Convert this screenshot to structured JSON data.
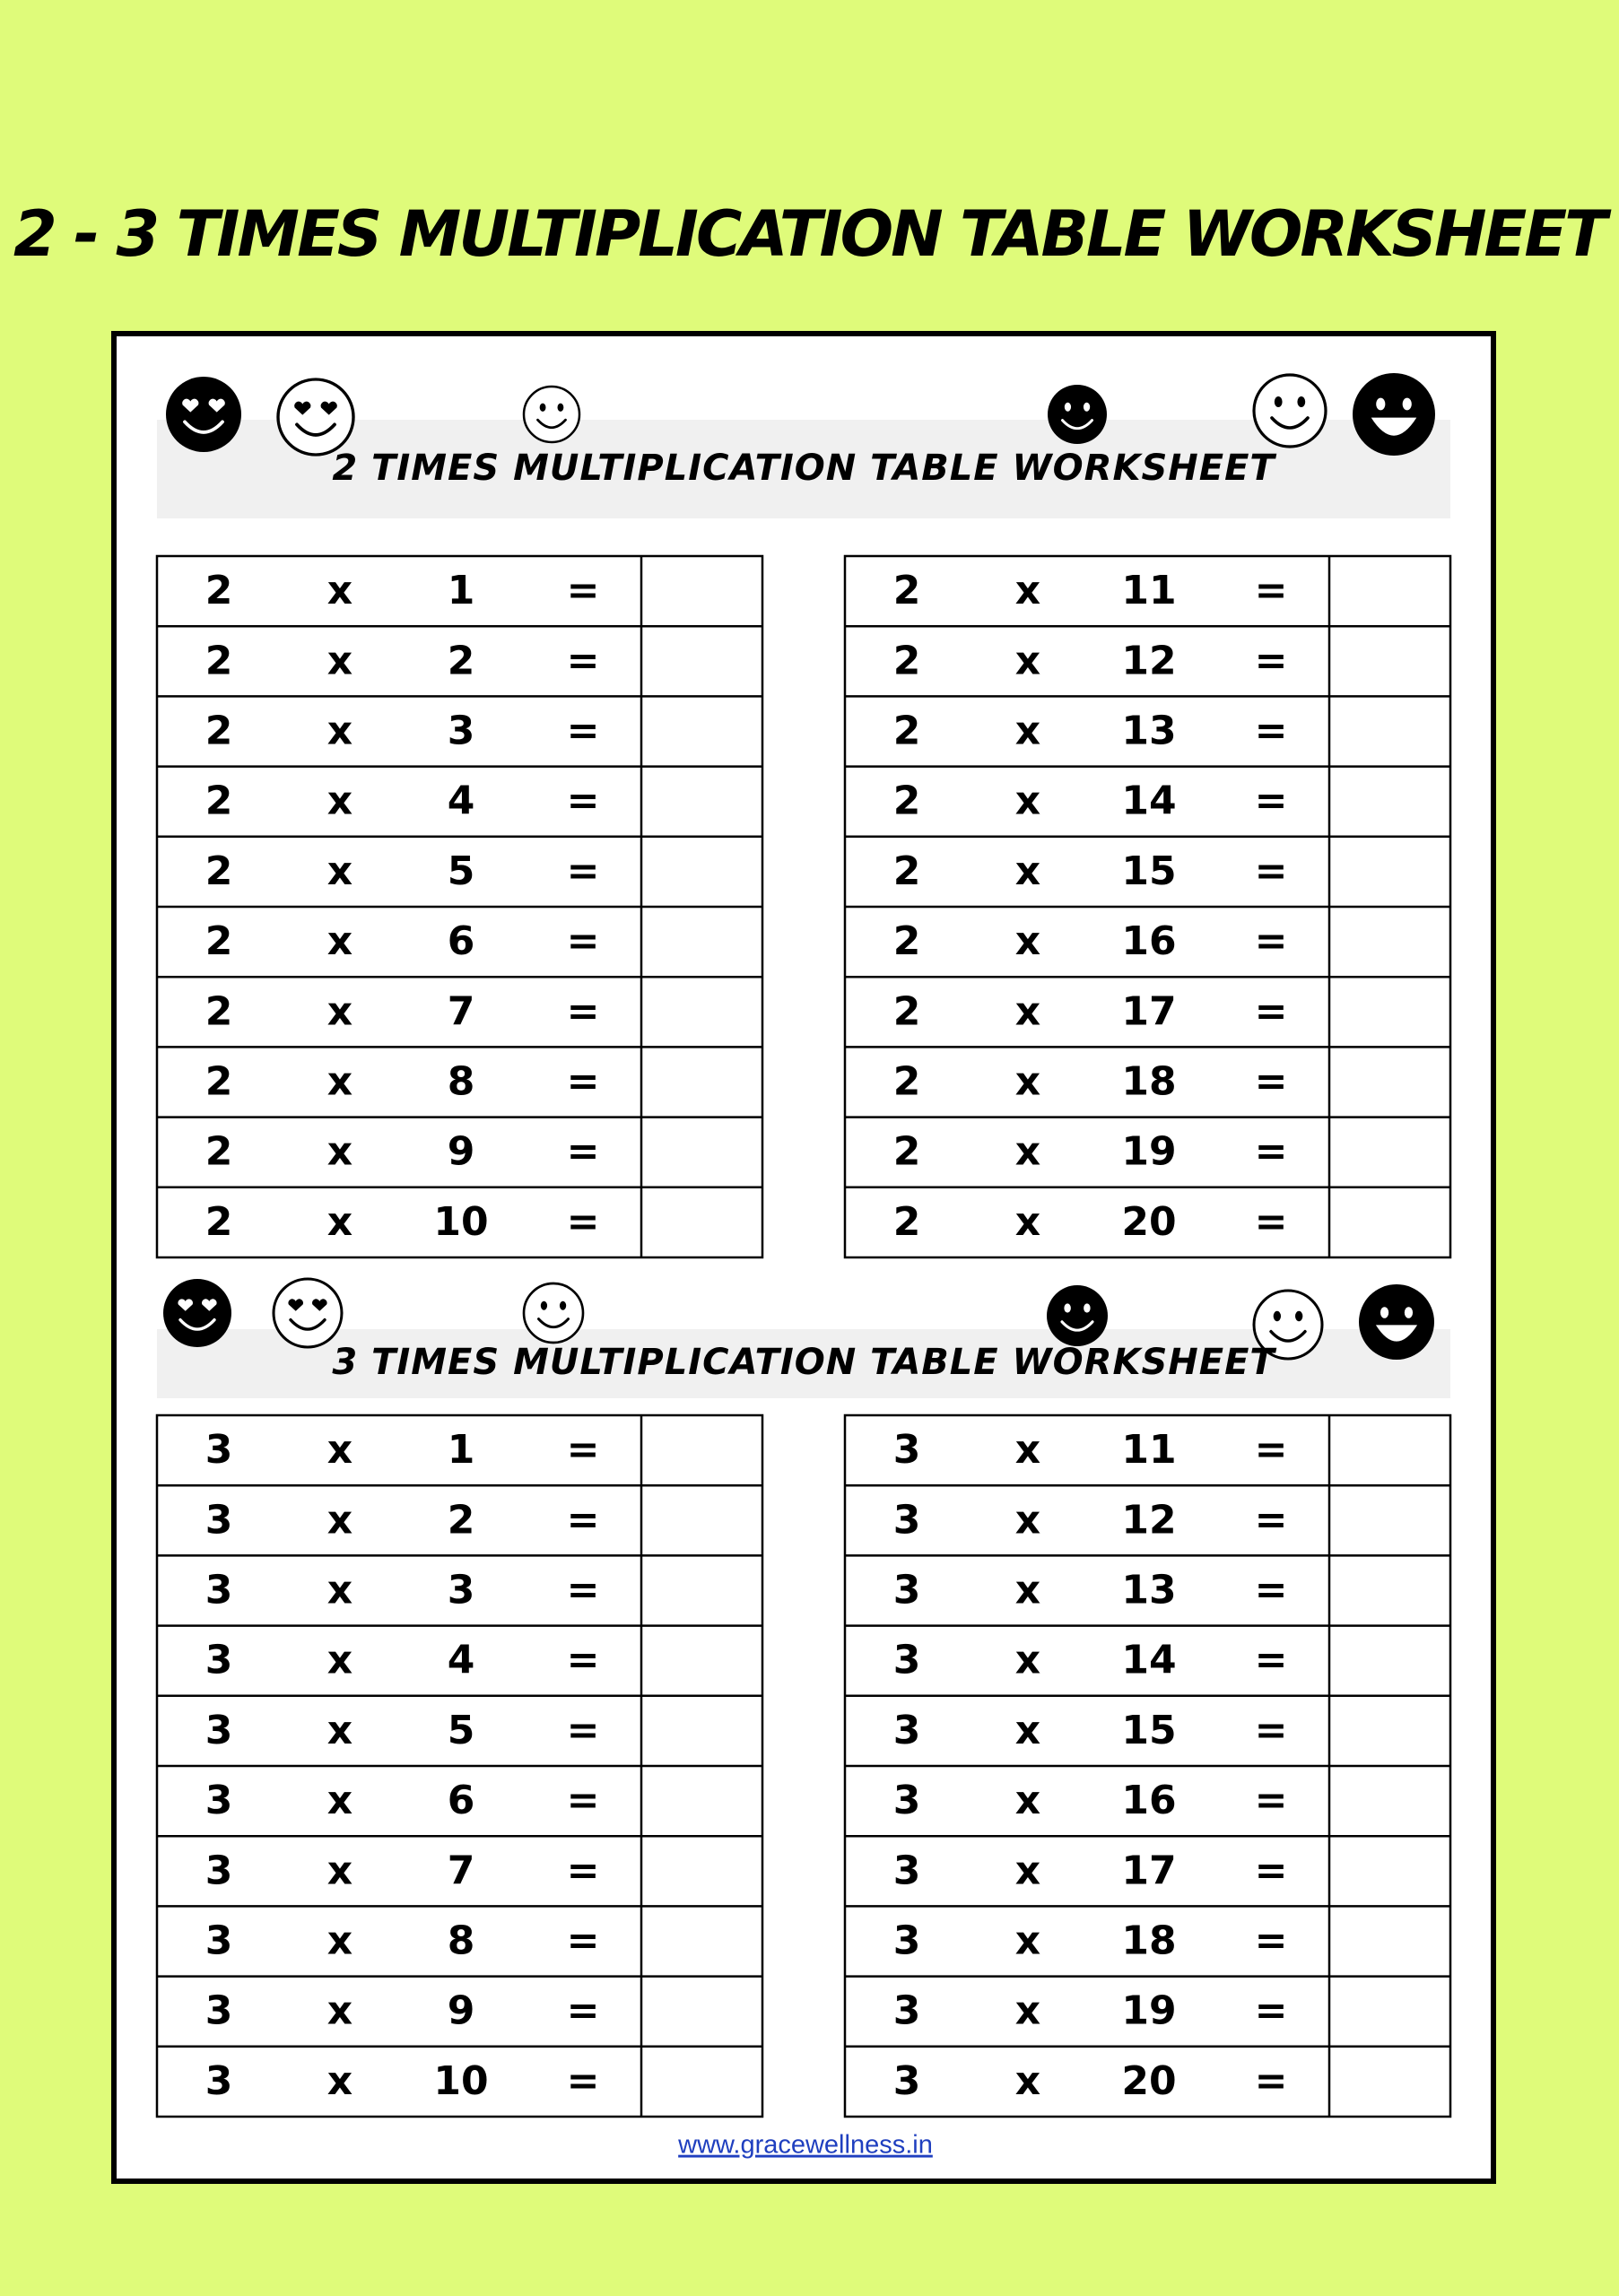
{
  "title": "2 - 3 TIMES MULTIPLICATION TABLE WORKSHEET",
  "sections": [
    {
      "heading": "2 TIMES MULTIPLICATION TABLE WORKSHEET",
      "tables": [
        [
          [
            2,
            "x",
            1,
            "="
          ],
          [
            2,
            "x",
            2,
            "="
          ],
          [
            2,
            "x",
            3,
            "="
          ],
          [
            2,
            "x",
            4,
            "="
          ],
          [
            2,
            "x",
            5,
            "="
          ],
          [
            2,
            "x",
            6,
            "="
          ],
          [
            2,
            "x",
            7,
            "="
          ],
          [
            2,
            "x",
            8,
            "="
          ],
          [
            2,
            "x",
            9,
            "="
          ],
          [
            2,
            "x",
            10,
            "="
          ]
        ],
        [
          [
            2,
            "x",
            11,
            "="
          ],
          [
            2,
            "x",
            12,
            "="
          ],
          [
            2,
            "x",
            13,
            "="
          ],
          [
            2,
            "x",
            14,
            "="
          ],
          [
            2,
            "x",
            15,
            "="
          ],
          [
            2,
            "x",
            16,
            "="
          ],
          [
            2,
            "x",
            17,
            "="
          ],
          [
            2,
            "x",
            18,
            "="
          ],
          [
            2,
            "x",
            19,
            "="
          ],
          [
            2,
            "x",
            20,
            "="
          ]
        ]
      ]
    },
    {
      "heading": "3 TIMES MULTIPLICATION TABLE WORKSHEET",
      "tables": [
        [
          [
            3,
            "x",
            1,
            "="
          ],
          [
            3,
            "x",
            2,
            "="
          ],
          [
            3,
            "x",
            3,
            "="
          ],
          [
            3,
            "x",
            4,
            "="
          ],
          [
            3,
            "x",
            5,
            "="
          ],
          [
            3,
            "x",
            6,
            "="
          ],
          [
            3,
            "x",
            7,
            "="
          ],
          [
            3,
            "x",
            8,
            "="
          ],
          [
            3,
            "x",
            9,
            "="
          ],
          [
            3,
            "x",
            10,
            "="
          ]
        ],
        [
          [
            3,
            "x",
            11,
            "="
          ],
          [
            3,
            "x",
            12,
            "="
          ],
          [
            3,
            "x",
            13,
            "="
          ],
          [
            3,
            "x",
            14,
            "="
          ],
          [
            3,
            "x",
            15,
            "="
          ],
          [
            3,
            "x",
            16,
            "="
          ],
          [
            3,
            "x",
            17,
            "="
          ],
          [
            3,
            "x",
            18,
            "="
          ],
          [
            3,
            "x",
            19,
            "="
          ],
          [
            3,
            "x",
            20,
            "="
          ]
        ]
      ]
    }
  ],
  "footer": "www.gracewellness.in"
}
